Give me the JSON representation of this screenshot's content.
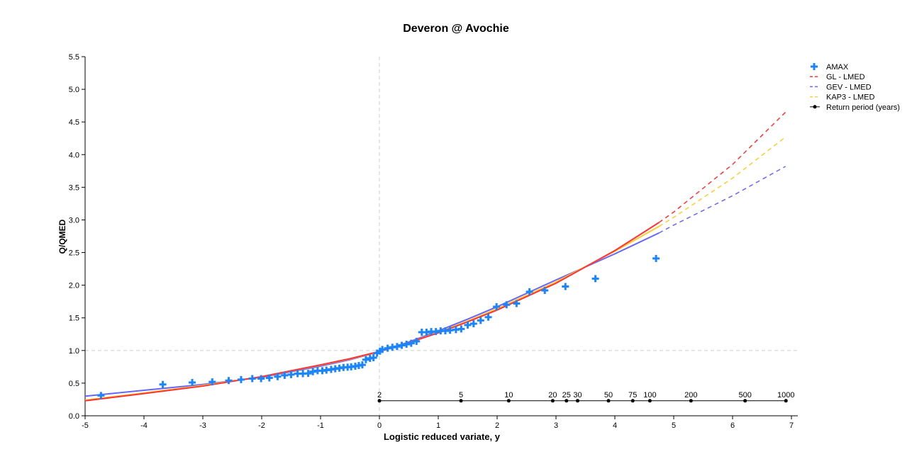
{
  "chart_data": {
    "type": "scatter",
    "title": "Deveron @ Avochie",
    "xlabel": "Logistic reduced variate, y",
    "ylabel": "Q/QMED",
    "xlim": [
      -5,
      7
    ],
    "ylim": [
      0,
      5.5
    ],
    "xticks": [
      -5,
      -4,
      -3,
      -2,
      -1,
      0,
      1,
      2,
      3,
      4,
      5,
      6,
      7
    ],
    "yticks": [
      "0.0",
      "0.5",
      "1.0",
      "1.5",
      "2.0",
      "2.5",
      "3.0",
      "3.5",
      "4.0",
      "4.5",
      "5.0",
      "5.5"
    ],
    "reference_lines": {
      "x": 0,
      "y": 1.0
    },
    "legend_position": "top-right",
    "colors": {
      "amax": "#1a85ff",
      "gl": "#ff3333",
      "gev": "#6666ff",
      "kap3": "#ffcc33",
      "return_period": "#000000"
    },
    "legend": [
      "AMAX",
      "GL - LMED",
      "GEV - LMED",
      "KAP3 - LMED",
      "Return period (years)"
    ],
    "amax": {
      "name": "AMAX",
      "points": [
        [
          -4.73,
          0.31
        ],
        [
          -3.68,
          0.48
        ],
        [
          -3.18,
          0.51
        ],
        [
          -2.84,
          0.52
        ],
        [
          -2.56,
          0.54
        ],
        [
          -2.35,
          0.555
        ],
        [
          -2.16,
          0.57
        ],
        [
          -2.01,
          0.57
        ],
        [
          -1.87,
          0.58
        ],
        [
          -1.73,
          0.6
        ],
        [
          -1.61,
          0.62
        ],
        [
          -1.5,
          0.63
        ],
        [
          -1.39,
          0.645
        ],
        [
          -1.3,
          0.645
        ],
        [
          -1.21,
          0.65
        ],
        [
          -1.13,
          0.675
        ],
        [
          -1.05,
          0.69
        ],
        [
          -0.97,
          0.69
        ],
        [
          -0.9,
          0.7
        ],
        [
          -0.82,
          0.71
        ],
        [
          -0.75,
          0.72
        ],
        [
          -0.68,
          0.73
        ],
        [
          -0.61,
          0.74
        ],
        [
          -0.54,
          0.745
        ],
        [
          -0.48,
          0.75
        ],
        [
          -0.41,
          0.76
        ],
        [
          -0.35,
          0.77
        ],
        [
          -0.29,
          0.78
        ],
        [
          -0.23,
          0.86
        ],
        [
          -0.16,
          0.88
        ],
        [
          -0.1,
          0.89
        ],
        [
          -0.04,
          0.96
        ],
        [
          0.01,
          0.99
        ],
        [
          0.05,
          1.016
        ],
        [
          0.14,
          1.034
        ],
        [
          0.22,
          1.05
        ],
        [
          0.3,
          1.06
        ],
        [
          0.38,
          1.08
        ],
        [
          0.46,
          1.095
        ],
        [
          0.54,
          1.11
        ],
        [
          0.63,
          1.14
        ],
        [
          0.72,
          1.28
        ],
        [
          0.8,
          1.28
        ],
        [
          0.88,
          1.29
        ],
        [
          0.96,
          1.29
        ],
        [
          1.04,
          1.3
        ],
        [
          1.12,
          1.3
        ],
        [
          1.2,
          1.31
        ],
        [
          1.3,
          1.32
        ],
        [
          1.39,
          1.33
        ],
        [
          1.5,
          1.39
        ],
        [
          1.6,
          1.41
        ],
        [
          1.72,
          1.46
        ],
        [
          1.85,
          1.51
        ],
        [
          1.99,
          1.67
        ],
        [
          2.16,
          1.7
        ],
        [
          2.33,
          1.72
        ],
        [
          2.55,
          1.9
        ],
        [
          2.81,
          1.92
        ],
        [
          3.16,
          1.98
        ],
        [
          3.67,
          2.1
        ],
        [
          4.7,
          2.41
        ]
      ]
    },
    "series": [
      {
        "name": "GEV - LMED",
        "x": [
          -5,
          -4,
          -3,
          -2,
          -1,
          -0.5,
          0,
          0.5,
          1,
          1.5,
          2,
          3,
          4,
          4.75,
          5,
          6,
          6.9
        ],
        "y": [
          0.3,
          0.39,
          0.48,
          0.59,
          0.76,
          0.86,
          0.98,
          1.13,
          1.3,
          1.48,
          1.67,
          2.08,
          2.48,
          2.8,
          2.92,
          3.37,
          3.82
        ],
        "solid_until": 4.75
      },
      {
        "name": "KAP3 - LMED",
        "x": [
          -5,
          -4,
          -3,
          -2,
          -1,
          -0.5,
          0,
          0.5,
          1,
          1.5,
          2,
          3,
          4,
          4.75,
          5,
          6,
          6.9
        ],
        "y": [
          0.24,
          0.35,
          0.465,
          0.6,
          0.775,
          0.87,
          0.98,
          1.12,
          1.28,
          1.45,
          1.64,
          2.05,
          2.52,
          2.9,
          3.04,
          3.64,
          4.27
        ],
        "solid_until": 4.75
      },
      {
        "name": "GL - LMED",
        "x": [
          -5,
          -4,
          -3,
          -2,
          -1,
          -0.5,
          0,
          0.5,
          1,
          1.5,
          2,
          3,
          4,
          4.75,
          5,
          6,
          6.9
        ],
        "y": [
          0.23,
          0.34,
          0.455,
          0.6,
          0.78,
          0.875,
          0.985,
          1.12,
          1.27,
          1.44,
          1.62,
          2.03,
          2.53,
          2.96,
          3.12,
          3.85,
          4.65
        ],
        "solid_until": 4.75
      }
    ],
    "return_period": {
      "name": "Return period (years)",
      "y": 0.23,
      "periods": [
        2,
        5,
        10,
        20,
        25,
        30,
        50,
        75,
        100,
        200,
        500,
        1000
      ]
    }
  }
}
